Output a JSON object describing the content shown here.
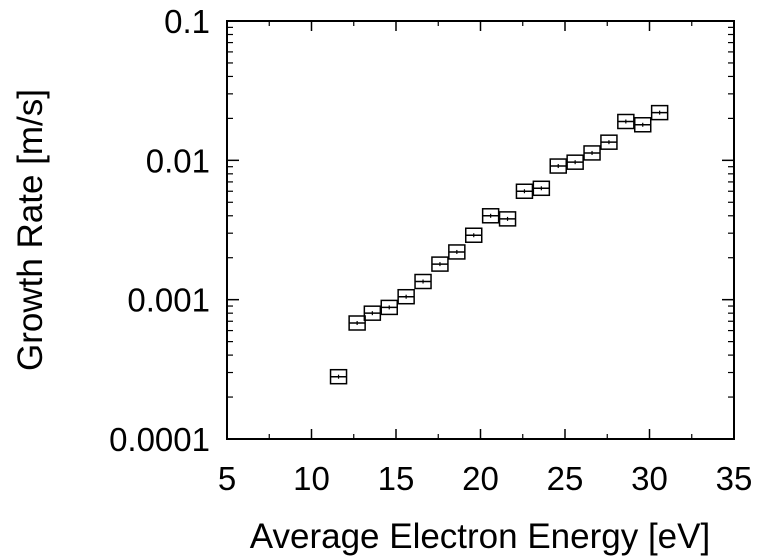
{
  "chart_data": {
    "type": "scatter",
    "title": "",
    "xlabel": "Average Electron Energy [eV]",
    "ylabel": "Growth Rate [m/s]",
    "xlim": [
      5,
      35
    ],
    "ylim": [
      0.0001,
      0.1
    ],
    "yscale": "log",
    "x_ticks": [
      "5",
      "10",
      "15",
      "20",
      "25",
      "30",
      "35"
    ],
    "y_ticks": [
      "0.0001",
      "0.001",
      "0.01",
      "0.1"
    ],
    "grid": false,
    "marker": "square-with-center-line",
    "series": [
      {
        "x": [
          11.6,
          12.7,
          13.6,
          14.6,
          15.6,
          16.6,
          17.6,
          18.6,
          19.6,
          20.6,
          21.6,
          22.6,
          23.6,
          24.6,
          25.6,
          26.6,
          27.6,
          28.6,
          29.6,
          30.6
        ],
        "y": [
          0.00028,
          0.00068,
          0.0008,
          0.00088,
          0.00105,
          0.00135,
          0.0018,
          0.0022,
          0.0029,
          0.004,
          0.0038,
          0.006,
          0.0063,
          0.0091,
          0.0097,
          0.0113,
          0.0135,
          0.019,
          0.018,
          0.022
        ]
      }
    ]
  }
}
